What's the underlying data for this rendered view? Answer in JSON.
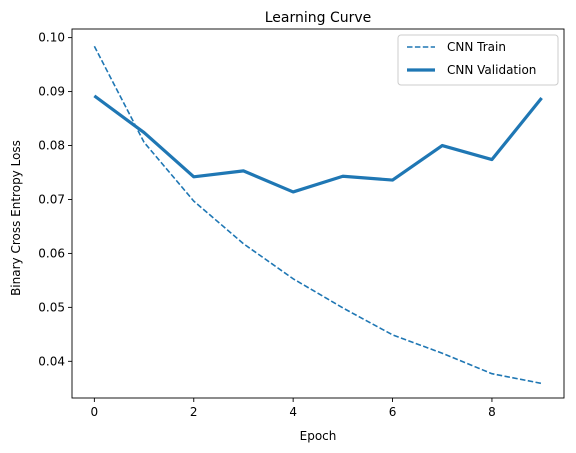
{
  "chart_data": {
    "type": "line",
    "title": "Learning Curve",
    "xlabel": "Epoch",
    "ylabel": "Binary Cross Entropy Loss",
    "xlim": [
      -0.45,
      9.45
    ],
    "ylim": [
      0.0332,
      0.1016
    ],
    "xticks": [
      0,
      2,
      4,
      6,
      8
    ],
    "xtick_labels": [
      "0",
      "2",
      "4",
      "6",
      "8"
    ],
    "yticks": [
      0.04,
      0.05,
      0.06,
      0.07,
      0.08,
      0.09,
      0.1
    ],
    "ytick_labels": [
      "0.04",
      "0.05",
      "0.06",
      "0.07",
      "0.08",
      "0.09",
      "0.10"
    ],
    "grid": false,
    "legend_position": "upper right",
    "x": [
      0,
      1,
      2,
      3,
      4,
      5,
      6,
      7,
      8,
      9
    ],
    "series": [
      {
        "name": "CNN Train",
        "values": [
          0.0984,
          0.0806,
          0.0697,
          0.0618,
          0.0553,
          0.0499,
          0.0449,
          0.0415,
          0.0377,
          0.0359
        ],
        "color": "#1f77b4",
        "style": "dashed"
      },
      {
        "name": "CNN Validation",
        "values": [
          0.0892,
          0.0824,
          0.0742,
          0.0753,
          0.0714,
          0.0743,
          0.0736,
          0.08,
          0.0774,
          0.0888
        ],
        "color": "#1f77b4",
        "style": "solid"
      }
    ]
  }
}
